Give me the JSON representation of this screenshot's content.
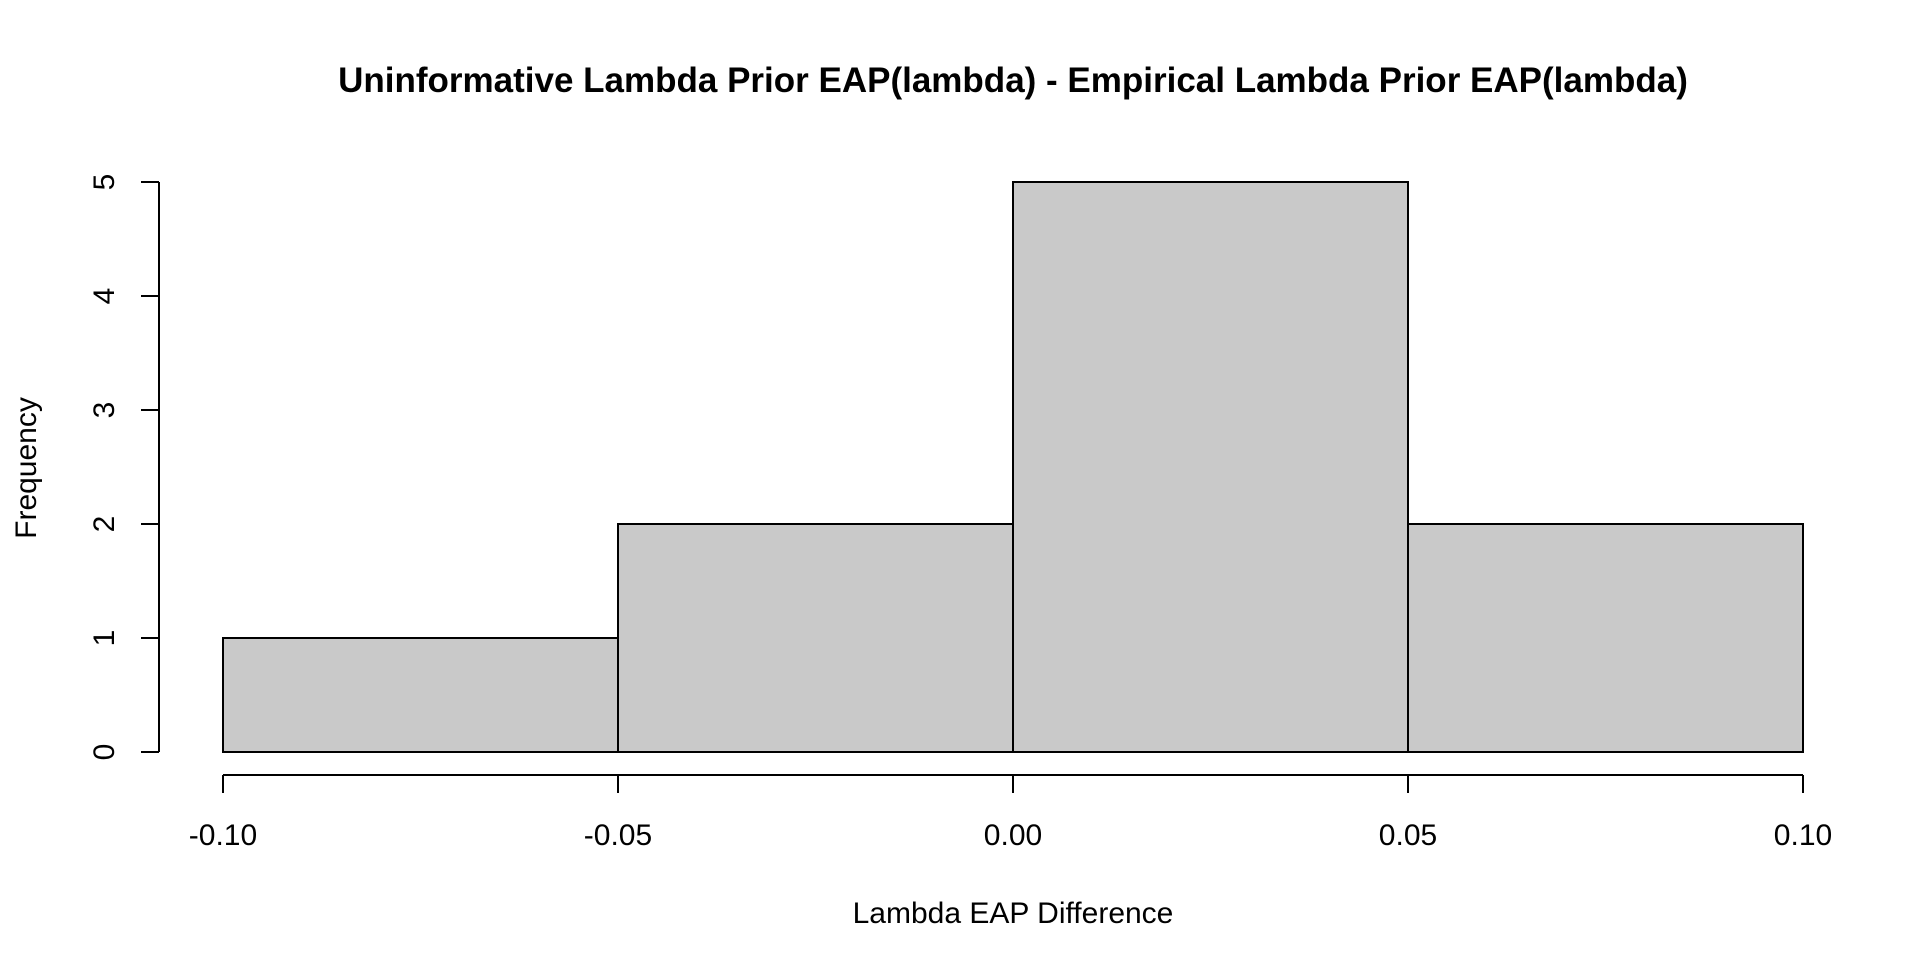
{
  "chart_data": {
    "type": "bar",
    "title": "Uninformative Lambda Prior EAP(lambda) - Empirical Lambda Prior EAP(lambda)",
    "xlabel": "Lambda EAP Difference",
    "ylabel": "Frequency",
    "bins": [
      {
        "from": -0.1,
        "to": -0.05,
        "count": 1
      },
      {
        "from": -0.05,
        "to": 0.0,
        "count": 2
      },
      {
        "from": 0.0,
        "to": 0.05,
        "count": 5
      },
      {
        "from": 0.05,
        "to": 0.1,
        "count": 2
      }
    ],
    "xlim": [
      -0.1,
      0.1
    ],
    "ylim": [
      0,
      5
    ],
    "x_ticks": [
      {
        "value": -0.1,
        "label": "-0.10"
      },
      {
        "value": -0.05,
        "label": "-0.05"
      },
      {
        "value": 0.0,
        "label": "0.00"
      },
      {
        "value": 0.05,
        "label": "0.05"
      },
      {
        "value": 0.1,
        "label": "0.10"
      }
    ],
    "y_ticks": [
      {
        "value": 0,
        "label": "0"
      },
      {
        "value": 1,
        "label": "1"
      },
      {
        "value": 2,
        "label": "2"
      },
      {
        "value": 3,
        "label": "3"
      },
      {
        "value": 4,
        "label": "4"
      },
      {
        "value": 5,
        "label": "5"
      }
    ],
    "grid": false,
    "bar_fill": "#c9c9c9",
    "bar_stroke": "#000000"
  }
}
